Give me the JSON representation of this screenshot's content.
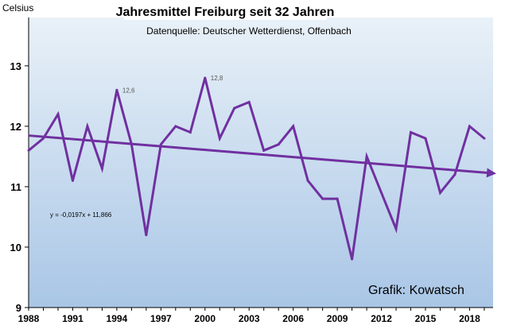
{
  "chart_data": {
    "type": "line",
    "title": "Jahresmittel Freiburg seit 32 Jahren",
    "subtitle": "Datenquelle: Deutscher Wetterdienst, Offenbach",
    "ylabel": "Celsius",
    "credit": "Grafik: Kowatsch",
    "ylim": [
      9,
      13.8
    ],
    "yticks": [
      9,
      10,
      11,
      12,
      13
    ],
    "xlim": [
      1988,
      2019.6
    ],
    "xticks": [
      1988,
      1991,
      1994,
      1997,
      2000,
      2003,
      2006,
      2009,
      2012,
      2015,
      2018
    ],
    "x": [
      1988,
      1989,
      1990,
      1991,
      1992,
      1993,
      1994,
      1995,
      1996,
      1997,
      1998,
      1999,
      2000,
      2001,
      2002,
      2003,
      2004,
      2005,
      2006,
      2007,
      2008,
      2009,
      2010,
      2011,
      2012,
      2013,
      2014,
      2015,
      2016,
      2017,
      2018,
      2019
    ],
    "series": [
      {
        "values": [
          11.6,
          11.8,
          12.2,
          11.1,
          12.0,
          11.3,
          12.6,
          11.7,
          10.2,
          11.7,
          12.0,
          11.9,
          12.8,
          11.8,
          12.3,
          12.4,
          11.6,
          11.7,
          12.0,
          11.1,
          10.8,
          10.8,
          9.8,
          11.5,
          10.9,
          10.3,
          11.9,
          11.8,
          10.9,
          11.2,
          12.0,
          11.8
        ],
        "color": "#7030a0"
      }
    ],
    "data_labels": [
      {
        "x": 1994,
        "text": "12,6"
      },
      {
        "x": 2000,
        "text": "12,8"
      }
    ],
    "trendline": {
      "equation": "y = -0,0197x + 11,866",
      "slope": -0.0197,
      "intercept": 11.866,
      "color": "#7030a0"
    },
    "grid": false,
    "background_gradient": [
      "#e9f1f8",
      "#a9c6e6"
    ]
  }
}
